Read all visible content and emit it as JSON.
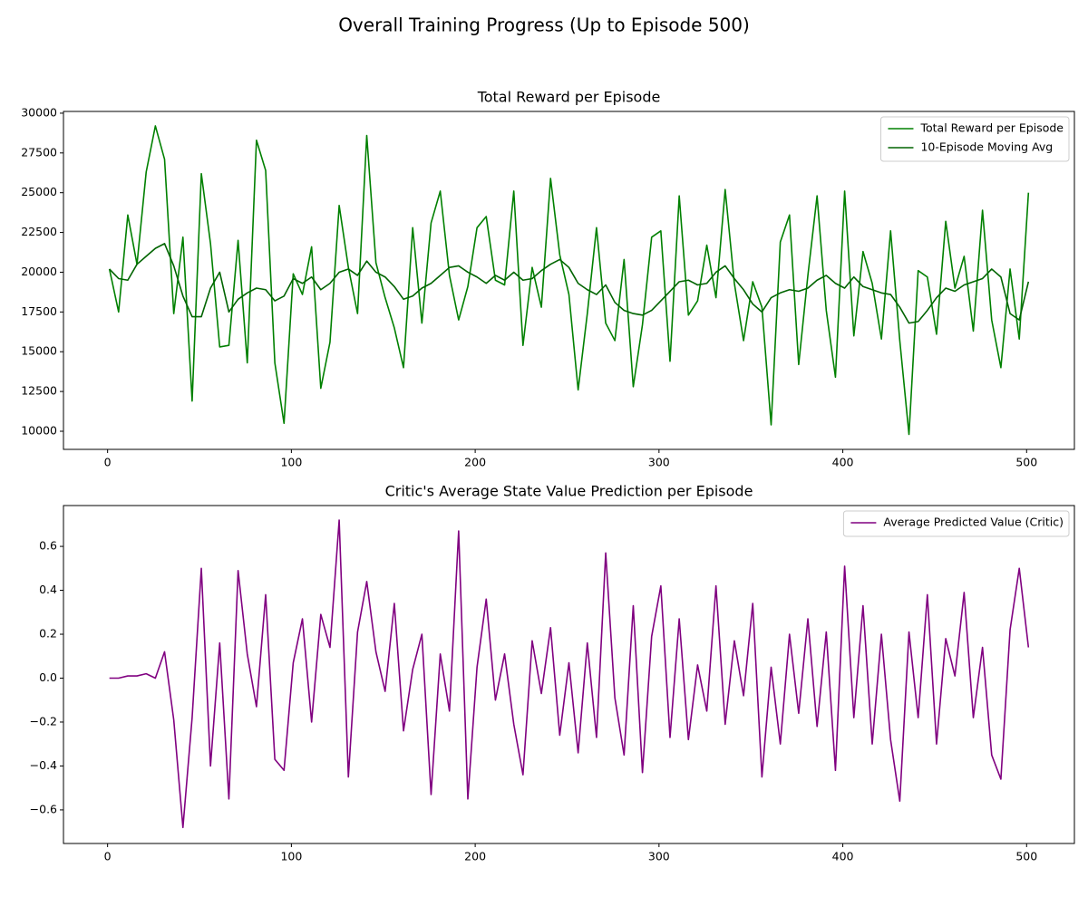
{
  "title": "Overall Training Progress (Up to Episode 500)",
  "chart_data": [
    {
      "type": "line",
      "title": "Total Reward per Episode",
      "legend": "upper right",
      "x": [
        1,
        6,
        11,
        16,
        21,
        26,
        31,
        36,
        41,
        46,
        51,
        56,
        61,
        66,
        71,
        76,
        81,
        86,
        91,
        96,
        101,
        106,
        111,
        116,
        121,
        126,
        131,
        136,
        141,
        146,
        151,
        156,
        161,
        166,
        171,
        176,
        181,
        186,
        191,
        196,
        201,
        206,
        211,
        216,
        221,
        226,
        231,
        236,
        241,
        246,
        251,
        256,
        261,
        266,
        271,
        276,
        281,
        286,
        291,
        296,
        301,
        306,
        311,
        316,
        321,
        326,
        331,
        336,
        341,
        346,
        351,
        356,
        361,
        366,
        371,
        376,
        381,
        386,
        391,
        396,
        401,
        406,
        411,
        416,
        421,
        426,
        431,
        436,
        441,
        446,
        451,
        456,
        461,
        466,
        471,
        476,
        481,
        486,
        491,
        496,
        501
      ],
      "series": [
        {
          "name": "Total Reward per Episode",
          "color": "#008000",
          "values": [
            20200,
            17500,
            23600,
            20500,
            26300,
            29200,
            27100,
            17400,
            22200,
            11900,
            26200,
            21800,
            15300,
            15400,
            22000,
            14300,
            28300,
            26400,
            14300,
            10500,
            19900,
            18600,
            21600,
            12700,
            15600,
            24200,
            20300,
            17400,
            28600,
            20600,
            18400,
            16500,
            14000,
            22800,
            16800,
            23100,
            25100,
            19800,
            17000,
            19100,
            22800,
            23500,
            19500,
            19200,
            25100,
            15400,
            20300,
            17800,
            25900,
            21100,
            18600,
            12600,
            17400,
            22800,
            16800,
            15700,
            20800,
            12800,
            16700,
            22200,
            22600,
            14400,
            24800,
            17300,
            18200,
            21700,
            18400,
            25200,
            19300,
            15700,
            19400,
            17800,
            10400,
            21900,
            23600,
            14200,
            19800,
            24800,
            17600,
            13400,
            25100,
            16000,
            21300,
            19300,
            15800,
            22600,
            15700,
            9800,
            20100,
            19700,
            16100,
            23200,
            19000,
            21000,
            16300,
            23900,
            17000,
            14000,
            20200,
            15800,
            25000
          ]
        },
        {
          "name": "10-Episode Moving Avg",
          "color": "#006400",
          "values": [
            20200,
            19600,
            19500,
            20500,
            21000,
            21500,
            21800,
            20400,
            18500,
            17200,
            17200,
            19000,
            20000,
            17500,
            18300,
            18700,
            19000,
            18900,
            18200,
            18500,
            19600,
            19300,
            19700,
            18900,
            19300,
            20000,
            20200,
            19800,
            20700,
            20000,
            19700,
            19100,
            18300,
            18500,
            19000,
            19300,
            19800,
            20300,
            20400,
            20000,
            19700,
            19300,
            19800,
            19500,
            20000,
            19500,
            19600,
            20100,
            20500,
            20800,
            20300,
            19300,
            18900,
            18600,
            19200,
            18100,
            17600,
            17400,
            17300,
            17600,
            18200,
            18800,
            19400,
            19500,
            19200,
            19300,
            20000,
            20400,
            19600,
            18900,
            18000,
            17500,
            18400,
            18700,
            18900,
            18800,
            19000,
            19500,
            19800,
            19300,
            19000,
            19700,
            19100,
            18900,
            18700,
            18600,
            17800,
            16800,
            16900,
            17600,
            18400,
            19000,
            18800,
            19200,
            19400,
            19600,
            20200,
            19700,
            17400,
            17000,
            19400
          ]
        }
      ],
      "xlim": [
        -24,
        526
      ],
      "xticks": [
        0,
        100,
        200,
        300,
        400,
        500
      ],
      "ylim": [
        8860,
        30110
      ],
      "yticks": [
        10000,
        12500,
        15000,
        17500,
        20000,
        22500,
        25000,
        27500,
        30000
      ]
    },
    {
      "type": "line",
      "title": "Critic's Average State Value Prediction per Episode",
      "legend": "upper right",
      "x": [
        1,
        6,
        11,
        16,
        21,
        26,
        31,
        36,
        41,
        46,
        51,
        56,
        61,
        66,
        71,
        76,
        81,
        86,
        91,
        96,
        101,
        106,
        111,
        116,
        121,
        126,
        131,
        136,
        141,
        146,
        151,
        156,
        161,
        166,
        171,
        176,
        181,
        186,
        191,
        196,
        201,
        206,
        211,
        216,
        221,
        226,
        231,
        236,
        241,
        246,
        251,
        256,
        261,
        266,
        271,
        276,
        281,
        286,
        291,
        296,
        301,
        306,
        311,
        316,
        321,
        326,
        331,
        336,
        341,
        346,
        351,
        356,
        361,
        366,
        371,
        376,
        381,
        386,
        391,
        396,
        401,
        406,
        411,
        416,
        421,
        426,
        431,
        436,
        441,
        446,
        451,
        456,
        461,
        466,
        471,
        476,
        481,
        486,
        491,
        496,
        501
      ],
      "series": [
        {
          "name": "Average Predicted Value (Critic)",
          "color": "#800080",
          "values": [
            0,
            0,
            0.01,
            0.01,
            0.02,
            0,
            0.12,
            -0.19,
            -0.68,
            -0.18,
            0.5,
            -0.4,
            0.16,
            -0.55,
            0.49,
            0.11,
            -0.13,
            0.38,
            -0.37,
            -0.42,
            0.07,
            0.27,
            -0.2,
            0.29,
            0.14,
            0.72,
            -0.45,
            0.21,
            0.44,
            0.12,
            -0.06,
            0.34,
            -0.24,
            0.04,
            0.2,
            -0.53,
            0.11,
            -0.15,
            0.67,
            -0.55,
            0.05,
            0.36,
            -0.1,
            0.11,
            -0.21,
            -0.44,
            0.17,
            -0.07,
            0.23,
            -0.26,
            0.07,
            -0.34,
            0.16,
            -0.27,
            0.57,
            -0.09,
            -0.35,
            0.33,
            -0.43,
            0.19,
            0.42,
            -0.27,
            0.27,
            -0.28,
            0.06,
            -0.15,
            0.42,
            -0.21,
            0.17,
            -0.08,
            0.34,
            -0.45,
            0.05,
            -0.3,
            0.2,
            -0.16,
            0.27,
            -0.22,
            0.21,
            -0.42,
            0.51,
            -0.18,
            0.33,
            -0.3,
            0.2,
            -0.28,
            -0.56,
            0.21,
            -0.18,
            0.38,
            -0.3,
            0.18,
            0.01,
            0.39,
            -0.18,
            0.14,
            -0.35,
            -0.46,
            0.22,
            0.5,
            0.14
          ]
        }
      ],
      "xlim": [
        -24,
        526
      ],
      "xticks": [
        0,
        100,
        200,
        300,
        400,
        500
      ],
      "ylim": [
        -0.753,
        0.786
      ],
      "yticks": [
        {
          "value": -0.6,
          "label": "−0.6"
        },
        {
          "value": -0.4,
          "label": "−0.4"
        },
        {
          "value": -0.2,
          "label": "−0.2"
        },
        {
          "value": 0,
          "label": "0.0"
        },
        0.2,
        0.4,
        0.6
      ]
    }
  ]
}
